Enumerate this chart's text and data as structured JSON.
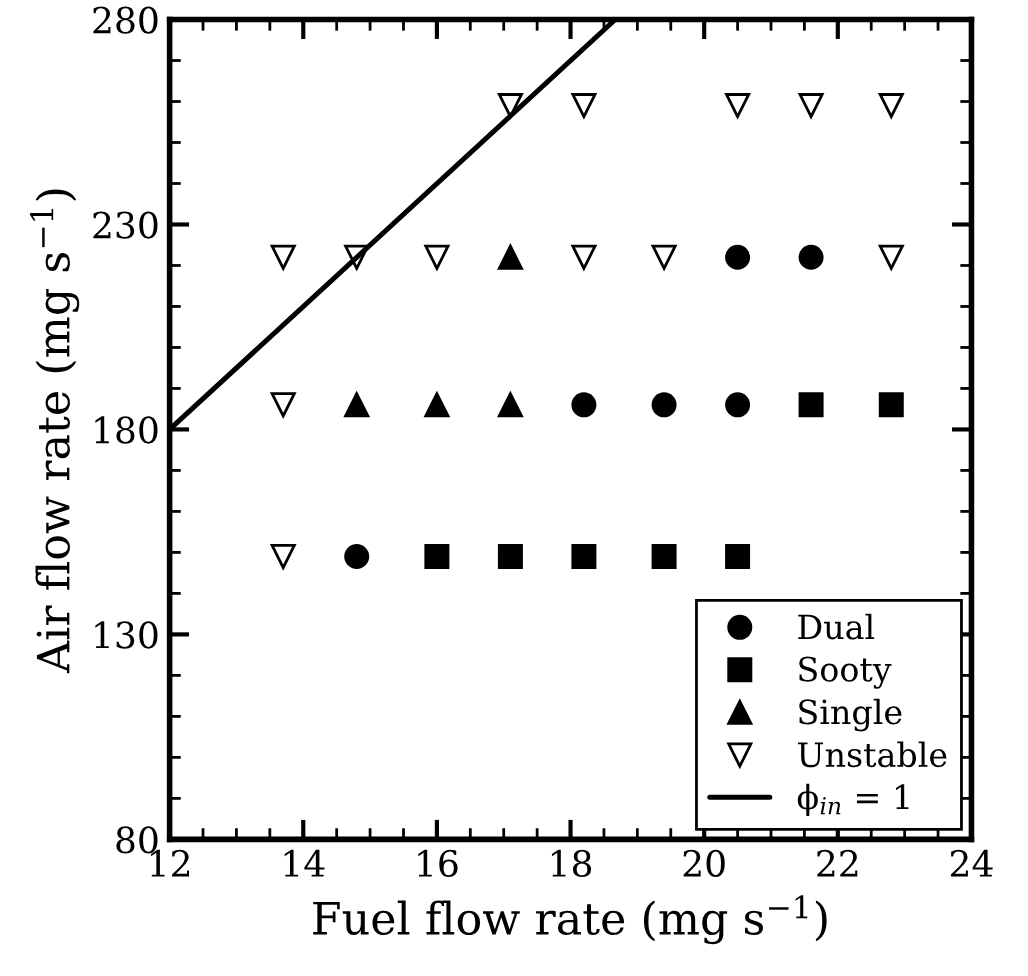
{
  "chart_data": {
    "type": "scatter",
    "xlabel": "Fuel flow rate (mg s$^{−1}$)",
    "ylabel": "Air flow rate (mg s$^{−1}$)",
    "xlim": [
      12,
      24
    ],
    "xticks": [
      12,
      14,
      16,
      18,
      20,
      22,
      24
    ],
    "ylim": [
      80,
      280
    ],
    "yticks": [
      80,
      130,
      180,
      230,
      280
    ],
    "grid": false,
    "legend": "bottom right",
    "series": [
      {
        "name": "Dual",
        "color": "#000000",
        "marker": "circle",
        "x": [
          20.5,
          21.6,
          18.2,
          19.4,
          20.5,
          14.8
        ],
        "values": [
          222,
          222,
          186,
          186,
          186,
          149
        ]
      },
      {
        "name": "Sooty",
        "color": "#000000",
        "marker": "square",
        "x": [
          21.6,
          22.8,
          16.0,
          17.1,
          18.2,
          19.4,
          20.5
        ],
        "values": [
          186,
          186,
          149,
          149,
          149,
          149,
          149
        ]
      },
      {
        "name": "Single",
        "color": "#000000",
        "marker": "triangle",
        "x": [
          17.1,
          14.8,
          16.0,
          17.1
        ],
        "values": [
          222,
          186,
          186,
          186
        ]
      },
      {
        "name": "Unstable",
        "color": "#000000",
        "marker": "triangle_down_open",
        "x": [
          17.1,
          18.2,
          20.5,
          21.6,
          22.8,
          13.7,
          14.8,
          16.0,
          18.2,
          19.4,
          22.8,
          13.7,
          13.7
        ],
        "values": [
          259,
          259,
          259,
          259,
          259,
          222,
          222,
          222,
          222,
          222,
          222,
          186,
          149
        ]
      },
      {
        "name": "ϕ$_{in}$ = 1",
        "type": "line",
        "color": "#000000",
        "marker": "none",
        "line_style": "solid",
        "x": [
          12,
          18.67
        ],
        "values": [
          180,
          280
        ]
      }
    ]
  }
}
